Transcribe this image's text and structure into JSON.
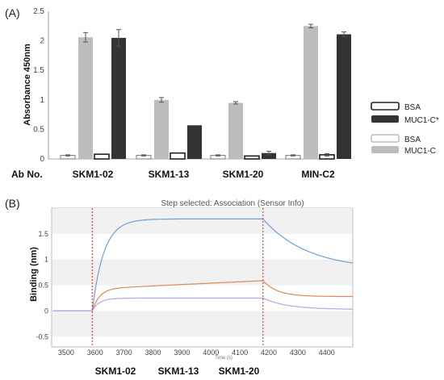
{
  "chart_data": [
    {
      "panel_label": "(A)",
      "type": "bar",
      "ylabel": "Absorbance 450nm",
      "ylim": [
        0,
        2.5
      ],
      "yticks": [
        "0",
        "0.5",
        "1",
        "1.5",
        "2",
        "2.5"
      ],
      "category_header": "Ab No.",
      "categories": [
        "SKM1-02",
        "SKM1-13",
        "SKM1-20",
        "MIN-C2"
      ],
      "grid": false,
      "legend_position": "right",
      "legend_groups": [
        [
          "BSA",
          "MUC1-C*"
        ],
        [
          "BSA",
          "MUC1-C"
        ]
      ],
      "series": [
        {
          "name": "BSA",
          "style": "white",
          "values": [
            0.06,
            0.06,
            0.06,
            0.06
          ],
          "errors": [
            0.01,
            0.01,
            0.01,
            0.01
          ]
        },
        {
          "name": "MUC1-C",
          "style": "lightgray",
          "values": [
            2.06,
            1.0,
            0.95,
            2.25
          ],
          "errors": [
            0.08,
            0.04,
            0.02,
            0.03
          ]
        },
        {
          "name": "BSA",
          "style": "white-thick",
          "values": [
            0.08,
            0.1,
            0.05,
            0.07
          ],
          "errors": [
            0,
            0,
            0,
            0.02
          ]
        },
        {
          "name": "MUC1-C*",
          "style": "dark",
          "values": [
            2.05,
            0.57,
            0.1,
            2.11
          ],
          "errors": [
            0.14,
            0,
            0.03,
            0.04
          ]
        }
      ],
      "colors": {
        "white": "#ffffff",
        "lightgray": "#bdbdbd",
        "dark": "#333333"
      }
    },
    {
      "panel_label": "(B)",
      "type": "line",
      "title": "Step selected: Association (Sensor Info)",
      "ylabel": "Binding (nm)",
      "xlabel": "Time (s)",
      "xlim": [
        3450,
        4490
      ],
      "ylim": [
        -0.7,
        2.0
      ],
      "xticks": [
        "3500",
        "3600",
        "3700",
        "3800",
        "3900",
        "4000",
        "4100",
        "4200",
        "4300",
        "4400"
      ],
      "yticks": [
        "-0.5",
        "0",
        "0.5",
        "1",
        "1.5"
      ],
      "step_lines_x": [
        3590,
        4180
      ],
      "association_start": 3590,
      "dissociation_start": 4180,
      "series": [
        {
          "name": "SKM1-02",
          "color": "#6e9fd8",
          "baseline": 0,
          "plateau": 1.79,
          "k_on": 0.025,
          "drift": 0,
          "end_value": 0.8,
          "k_off": 0.0065
        },
        {
          "name": "SKM1-13",
          "color": "#e08850",
          "baseline": 0,
          "plateau": 0.43,
          "k_on": 0.04,
          "drift": 0.00027,
          "end_value": 0.28,
          "k_off": 0.02
        },
        {
          "name": "SKM1-20",
          "color": "#b7a6dc",
          "baseline": 0,
          "plateau": 0.25,
          "k_on": 0.04,
          "drift": 0,
          "end_value": 0.03,
          "k_off": 0.012
        }
      ],
      "legend_labels": [
        "SKM1-02",
        "SKM1-13",
        "SKM1-20"
      ],
      "colors": {
        "step_line": "#e02020",
        "band": "#f1f1f1"
      }
    }
  ]
}
